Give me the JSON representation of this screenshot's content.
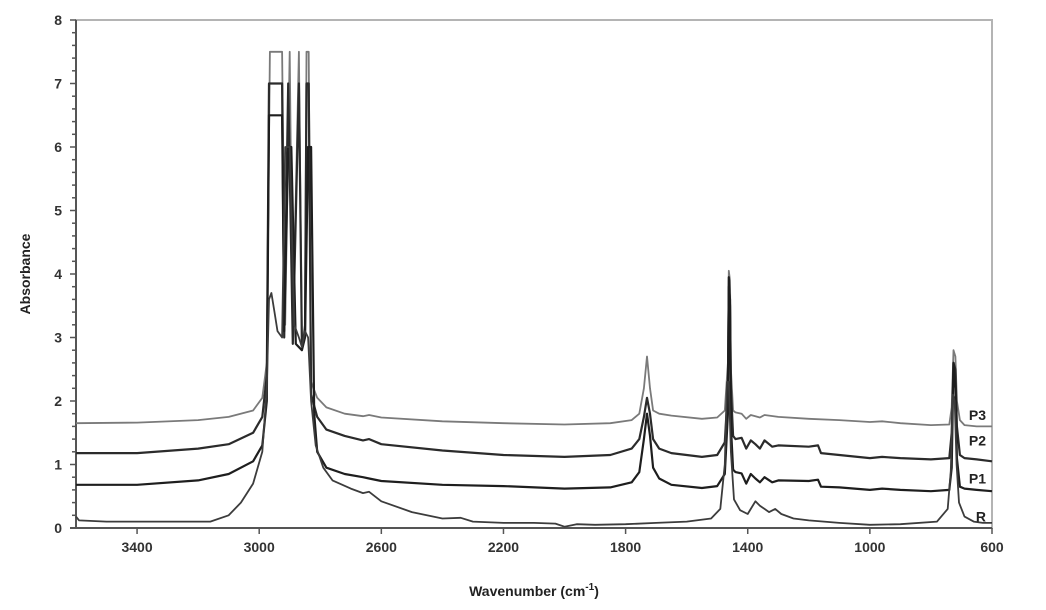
{
  "chart_data": {
    "type": "line",
    "title": "",
    "xlabel": "Wavenumber (cm-1)",
    "xlabel_main": "Wavenumber (cm",
    "xlabel_sup": "-1",
    "xlabel_close": ")",
    "ylabel": "Absorbance",
    "xlim": [
      3600,
      600
    ],
    "ylim": [
      0,
      8
    ],
    "x_reversed": true,
    "x_ticks": [
      3400,
      3000,
      2600,
      2200,
      1800,
      1400,
      1000,
      600
    ],
    "y_ticks": [
      0,
      1,
      2,
      3,
      4,
      5,
      6,
      7,
      8
    ],
    "y_minor_step": 0.2,
    "grid": false,
    "legend": "inline labels at right end of each trace",
    "series": [
      {
        "name": "P3",
        "color": "#7a7a7a",
        "width": 1.8,
        "label_y": 1.78,
        "points": [
          [
            3600,
            1.65
          ],
          [
            3400,
            1.66
          ],
          [
            3200,
            1.7
          ],
          [
            3100,
            1.75
          ],
          [
            3020,
            1.85
          ],
          [
            2990,
            2.05
          ],
          [
            2975,
            2.6
          ],
          [
            2965,
            7.5
          ],
          [
            2945,
            7.5
          ],
          [
            2935,
            7.5
          ],
          [
            2925,
            7.5
          ],
          [
            2915,
            3.2
          ],
          [
            2900,
            7.5
          ],
          [
            2890,
            3.0
          ],
          [
            2870,
            7.5
          ],
          [
            2860,
            2.9
          ],
          [
            2850,
            3.2
          ],
          [
            2845,
            7.5
          ],
          [
            2838,
            7.5
          ],
          [
            2830,
            2.3
          ],
          [
            2810,
            2.05
          ],
          [
            2780,
            1.9
          ],
          [
            2720,
            1.8
          ],
          [
            2660,
            1.76
          ],
          [
            2640,
            1.78
          ],
          [
            2600,
            1.74
          ],
          [
            2400,
            1.68
          ],
          [
            2200,
            1.65
          ],
          [
            2000,
            1.63
          ],
          [
            1850,
            1.65
          ],
          [
            1780,
            1.7
          ],
          [
            1755,
            1.8
          ],
          [
            1740,
            2.2
          ],
          [
            1730,
            2.7
          ],
          [
            1720,
            2.2
          ],
          [
            1710,
            1.85
          ],
          [
            1690,
            1.8
          ],
          [
            1650,
            1.77
          ],
          [
            1550,
            1.72
          ],
          [
            1500,
            1.74
          ],
          [
            1475,
            1.85
          ],
          [
            1465,
            2.6
          ],
          [
            1462,
            4.05
          ],
          [
            1458,
            3.9
          ],
          [
            1455,
            2.5
          ],
          [
            1448,
            1.85
          ],
          [
            1440,
            1.82
          ],
          [
            1420,
            1.8
          ],
          [
            1405,
            1.72
          ],
          [
            1390,
            1.78
          ],
          [
            1375,
            1.76
          ],
          [
            1360,
            1.74
          ],
          [
            1345,
            1.78
          ],
          [
            1300,
            1.75
          ],
          [
            1200,
            1.72
          ],
          [
            1100,
            1.7
          ],
          [
            1000,
            1.67
          ],
          [
            960,
            1.68
          ],
          [
            900,
            1.65
          ],
          [
            800,
            1.62
          ],
          [
            740,
            1.63
          ],
          [
            732,
            1.9
          ],
          [
            726,
            2.8
          ],
          [
            720,
            2.7
          ],
          [
            715,
            2.0
          ],
          [
            705,
            1.7
          ],
          [
            690,
            1.62
          ],
          [
            650,
            1.6
          ],
          [
            600,
            1.6
          ]
        ]
      },
      {
        "name": "P2",
        "color": "#2b2b2b",
        "width": 2.2,
        "label_y": 1.38,
        "points": [
          [
            3600,
            1.18
          ],
          [
            3400,
            1.18
          ],
          [
            3200,
            1.25
          ],
          [
            3100,
            1.32
          ],
          [
            3020,
            1.5
          ],
          [
            2990,
            1.75
          ],
          [
            2975,
            2.4
          ],
          [
            2968,
            7.0
          ],
          [
            2945,
            7.0
          ],
          [
            2935,
            7.0
          ],
          [
            2925,
            7.0
          ],
          [
            2918,
            3.0
          ],
          [
            2905,
            7.0
          ],
          [
            2890,
            2.9
          ],
          [
            2870,
            7.0
          ],
          [
            2860,
            2.9
          ],
          [
            2850,
            3.1
          ],
          [
            2845,
            7.0
          ],
          [
            2838,
            7.0
          ],
          [
            2830,
            2.1
          ],
          [
            2810,
            1.75
          ],
          [
            2780,
            1.55
          ],
          [
            2720,
            1.45
          ],
          [
            2660,
            1.38
          ],
          [
            2640,
            1.4
          ],
          [
            2600,
            1.32
          ],
          [
            2400,
            1.22
          ],
          [
            2200,
            1.15
          ],
          [
            2000,
            1.12
          ],
          [
            1850,
            1.15
          ],
          [
            1780,
            1.25
          ],
          [
            1755,
            1.4
          ],
          [
            1740,
            1.75
          ],
          [
            1730,
            2.05
          ],
          [
            1720,
            1.8
          ],
          [
            1710,
            1.4
          ],
          [
            1690,
            1.25
          ],
          [
            1650,
            1.18
          ],
          [
            1550,
            1.12
          ],
          [
            1500,
            1.15
          ],
          [
            1475,
            1.35
          ],
          [
            1465,
            2.2
          ],
          [
            1462,
            3.8
          ],
          [
            1458,
            3.6
          ],
          [
            1455,
            2.2
          ],
          [
            1448,
            1.45
          ],
          [
            1440,
            1.4
          ],
          [
            1420,
            1.42
          ],
          [
            1405,
            1.25
          ],
          [
            1390,
            1.38
          ],
          [
            1375,
            1.32
          ],
          [
            1360,
            1.25
          ],
          [
            1345,
            1.38
          ],
          [
            1320,
            1.28
          ],
          [
            1300,
            1.3
          ],
          [
            1200,
            1.28
          ],
          [
            1170,
            1.3
          ],
          [
            1160,
            1.18
          ],
          [
            1100,
            1.15
          ],
          [
            1000,
            1.1
          ],
          [
            960,
            1.12
          ],
          [
            900,
            1.1
          ],
          [
            800,
            1.08
          ],
          [
            740,
            1.1
          ],
          [
            732,
            1.5
          ],
          [
            726,
            2.6
          ],
          [
            720,
            2.5
          ],
          [
            715,
            1.6
          ],
          [
            705,
            1.15
          ],
          [
            690,
            1.1
          ],
          [
            650,
            1.08
          ],
          [
            600,
            1.05
          ]
        ]
      },
      {
        "name": "P1",
        "color": "#1e1e1e",
        "width": 2.2,
        "label_y": 0.78,
        "points": [
          [
            3600,
            0.68
          ],
          [
            3400,
            0.68
          ],
          [
            3200,
            0.75
          ],
          [
            3100,
            0.85
          ],
          [
            3020,
            1.05
          ],
          [
            2990,
            1.3
          ],
          [
            2975,
            2.0
          ],
          [
            2968,
            6.5
          ],
          [
            2950,
            6.5
          ],
          [
            2935,
            6.5
          ],
          [
            2925,
            6.5
          ],
          [
            2918,
            3.1
          ],
          [
            2905,
            6.0
          ],
          [
            2895,
            6.0
          ],
          [
            2880,
            2.9
          ],
          [
            2860,
            2.8
          ],
          [
            2850,
            3.0
          ],
          [
            2840,
            6.0
          ],
          [
            2830,
            6.0
          ],
          [
            2820,
            1.8
          ],
          [
            2810,
            1.2
          ],
          [
            2780,
            0.95
          ],
          [
            2720,
            0.85
          ],
          [
            2660,
            0.8
          ],
          [
            2640,
            0.78
          ],
          [
            2600,
            0.74
          ],
          [
            2400,
            0.68
          ],
          [
            2200,
            0.66
          ],
          [
            2000,
            0.62
          ],
          [
            1850,
            0.64
          ],
          [
            1780,
            0.72
          ],
          [
            1755,
            0.88
          ],
          [
            1740,
            1.4
          ],
          [
            1730,
            1.8
          ],
          [
            1720,
            1.45
          ],
          [
            1710,
            0.95
          ],
          [
            1690,
            0.78
          ],
          [
            1650,
            0.68
          ],
          [
            1550,
            0.63
          ],
          [
            1500,
            0.66
          ],
          [
            1475,
            0.85
          ],
          [
            1465,
            1.8
          ],
          [
            1462,
            3.95
          ],
          [
            1458,
            3.5
          ],
          [
            1455,
            1.6
          ],
          [
            1448,
            0.92
          ],
          [
            1440,
            0.88
          ],
          [
            1420,
            0.86
          ],
          [
            1405,
            0.7
          ],
          [
            1390,
            0.85
          ],
          [
            1375,
            0.78
          ],
          [
            1360,
            0.72
          ],
          [
            1345,
            0.8
          ],
          [
            1320,
            0.72
          ],
          [
            1300,
            0.75
          ],
          [
            1200,
            0.74
          ],
          [
            1170,
            0.76
          ],
          [
            1160,
            0.65
          ],
          [
            1100,
            0.64
          ],
          [
            1000,
            0.6
          ],
          [
            960,
            0.62
          ],
          [
            900,
            0.6
          ],
          [
            800,
            0.58
          ],
          [
            740,
            0.6
          ],
          [
            732,
            0.95
          ],
          [
            726,
            2.6
          ],
          [
            720,
            2.2
          ],
          [
            715,
            1.1
          ],
          [
            705,
            0.65
          ],
          [
            690,
            0.62
          ],
          [
            650,
            0.6
          ],
          [
            600,
            0.58
          ]
        ]
      },
      {
        "name": "R",
        "color": "#3c3c3c",
        "width": 1.8,
        "label_y": 0.18,
        "points": [
          [
            3600,
            0.18
          ],
          [
            3590,
            0.12
          ],
          [
            3500,
            0.1
          ],
          [
            3300,
            0.1
          ],
          [
            3160,
            0.1
          ],
          [
            3100,
            0.2
          ],
          [
            3060,
            0.4
          ],
          [
            3020,
            0.7
          ],
          [
            2990,
            1.2
          ],
          [
            2975,
            2.2
          ],
          [
            2968,
            3.6
          ],
          [
            2960,
            3.7
          ],
          [
            2950,
            3.4
          ],
          [
            2940,
            3.1
          ],
          [
            2925,
            3.0
          ],
          [
            2915,
            6.0
          ],
          [
            2900,
            6.0
          ],
          [
            2885,
            3.2
          ],
          [
            2870,
            3.0
          ],
          [
            2860,
            2.85
          ],
          [
            2850,
            3.1
          ],
          [
            2840,
            3.0
          ],
          [
            2830,
            2.0
          ],
          [
            2815,
            1.3
          ],
          [
            2790,
            0.95
          ],
          [
            2760,
            0.75
          ],
          [
            2700,
            0.62
          ],
          [
            2660,
            0.55
          ],
          [
            2640,
            0.57
          ],
          [
            2600,
            0.42
          ],
          [
            2500,
            0.25
          ],
          [
            2400,
            0.15
          ],
          [
            2340,
            0.16
          ],
          [
            2300,
            0.1
          ],
          [
            2200,
            0.08
          ],
          [
            2100,
            0.08
          ],
          [
            2030,
            0.07
          ],
          [
            2000,
            0.02
          ],
          [
            1960,
            0.06
          ],
          [
            1900,
            0.05
          ],
          [
            1800,
            0.06
          ],
          [
            1700,
            0.08
          ],
          [
            1600,
            0.1
          ],
          [
            1520,
            0.15
          ],
          [
            1490,
            0.3
          ],
          [
            1475,
            1.0
          ],
          [
            1468,
            2.3
          ],
          [
            1462,
            2.3
          ],
          [
            1455,
            1.2
          ],
          [
            1445,
            0.45
          ],
          [
            1425,
            0.28
          ],
          [
            1400,
            0.22
          ],
          [
            1390,
            0.3
          ],
          [
            1375,
            0.42
          ],
          [
            1360,
            0.35
          ],
          [
            1345,
            0.3
          ],
          [
            1330,
            0.25
          ],
          [
            1310,
            0.3
          ],
          [
            1290,
            0.22
          ],
          [
            1250,
            0.15
          ],
          [
            1200,
            0.12
          ],
          [
            1100,
            0.08
          ],
          [
            1000,
            0.05
          ],
          [
            900,
            0.06
          ],
          [
            780,
            0.1
          ],
          [
            745,
            0.3
          ],
          [
            735,
            0.9
          ],
          [
            728,
            2.1
          ],
          [
            722,
            2.0
          ],
          [
            716,
            1.0
          ],
          [
            708,
            0.4
          ],
          [
            690,
            0.18
          ],
          [
            660,
            0.1
          ],
          [
            630,
            0.08
          ],
          [
            600,
            0.08
          ]
        ]
      }
    ]
  },
  "axes": {
    "y_tick_labels": [
      "0",
      "1",
      "2",
      "3",
      "4",
      "5",
      "6",
      "7",
      "8"
    ],
    "x_tick_labels": [
      "3400",
      "3000",
      "2600",
      "2200",
      "1800",
      "1400",
      "1000",
      "600"
    ],
    "frame_color": "#b4b4b4",
    "axis_color": "#555555"
  }
}
